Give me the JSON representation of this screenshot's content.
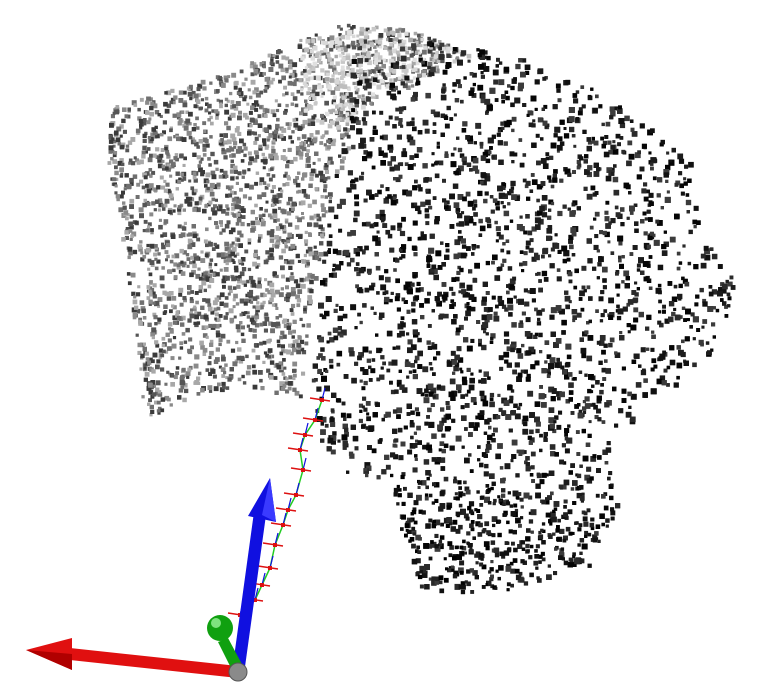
{
  "scene": {
    "background_color": "#ffffff",
    "point_cloud": {
      "palette_left": [
        "#3a3a3a",
        "#555555",
        "#707070",
        "#8a8a8a",
        "#a8a8a8"
      ],
      "palette_right": [
        "#050505",
        "#111111",
        "#1c1c1c",
        "#2a2a2a",
        "#3b3b3b"
      ]
    },
    "axes": {
      "x_axis_color": "#e01010",
      "y_axis_color": "#10a010",
      "z_axis_color": "#1010e0",
      "origin_color": "#8a8a8a"
    },
    "trajectory": {
      "path_color": "#22cc22",
      "marker_color": "#dd1111"
    }
  }
}
